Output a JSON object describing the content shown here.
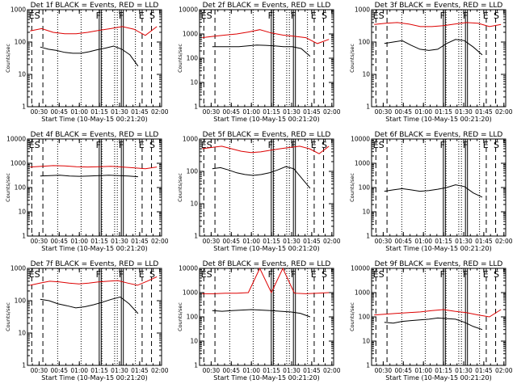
{
  "figure": {
    "colors": {
      "events": "#000000",
      "lld": "#dd0000",
      "axes": "#000000",
      "background": "#ffffff"
    }
  },
  "chart_data": [
    {
      "type": "line",
      "title": "Det 1f BLACK = Events, RED = LLD",
      "xlabel": "Start Time (10-May-15 00:21:20)",
      "ylabel": "Counts/sec",
      "x_ticks": [
        "00:30",
        "00:45",
        "01:00",
        "01:15",
        "01:30",
        "01:45",
        "02:00"
      ],
      "y_ticks": [
        "1",
        "10",
        "100",
        "1000"
      ],
      "ylim": [
        1,
        1000
      ],
      "y_scale": "log",
      "markers": [
        "E",
        "S",
        "F",
        "F",
        "E",
        "S"
      ],
      "series": [
        {
          "name": "Events",
          "color": "#000000",
          "values": [
            70,
            60,
            55,
            48,
            45,
            45,
            50,
            58,
            65,
            75,
            60,
            40,
            18
          ]
        },
        {
          "name": "LLD",
          "color": "#dd0000",
          "values": [
            220,
            260,
            200,
            180,
            180,
            200,
            230,
            260,
            300,
            250,
            160,
            300
          ]
        }
      ]
    },
    {
      "type": "line",
      "title": "Det 2f BLACK = Events, RED = LLD",
      "xlabel": "Start Time (10-May-15 00:21:20)",
      "ylabel": "Counts/sec",
      "x_ticks": [
        "00:30",
        "00:45",
        "01:00",
        "01:15",
        "01:30",
        "01:45",
        "02:00"
      ],
      "y_ticks": [
        "1",
        "10",
        "100",
        "1000",
        "10000"
      ],
      "ylim": [
        1,
        10000
      ],
      "y_scale": "log",
      "markers": [
        "E",
        "S",
        "F",
        "F",
        "E",
        "S"
      ],
      "series": [
        {
          "name": "Events",
          "color": "#000000",
          "values": [
            300,
            300,
            300,
            300,
            320,
            350,
            340,
            320,
            300,
            300,
            250,
            120
          ]
        },
        {
          "name": "LLD",
          "color": "#dd0000",
          "values": [
            700,
            800,
            900,
            1000,
            1200,
            1500,
            1100,
            900,
            800,
            700,
            400,
            600
          ]
        }
      ]
    },
    {
      "type": "line",
      "title": "Det 3f BLACK = Events, RED = LLD",
      "xlabel": "Start Time (10-May-15 00:21:20)",
      "ylabel": "Counts/sec",
      "x_ticks": [
        "00:30",
        "00:45",
        "01:00",
        "01:15",
        "01:30",
        "01:45",
        "02:00"
      ],
      "y_ticks": [
        "1",
        "10",
        "100",
        "1000"
      ],
      "ylim": [
        1,
        1000
      ],
      "y_scale": "log",
      "markers": [
        "E",
        "S",
        "F",
        "F",
        "E",
        "S"
      ],
      "series": [
        {
          "name": "Events",
          "color": "#000000",
          "values": [
            90,
            100,
            110,
            80,
            60,
            55,
            60,
            90,
            120,
            110,
            70,
            40
          ]
        },
        {
          "name": "LLD",
          "color": "#dd0000",
          "values": [
            350,
            380,
            400,
            360,
            300,
            300,
            320,
            360,
            400,
            380,
            300,
            350
          ]
        }
      ]
    },
    {
      "type": "line",
      "title": "Det 4f BLACK = Events, RED = LLD",
      "xlabel": "Start Time (10-May-15 00:21:20)",
      "ylabel": "Counts/sec",
      "x_ticks": [
        "00:30",
        "00:45",
        "01:00",
        "01:15",
        "01:30",
        "01:45",
        "02:00"
      ],
      "y_ticks": [
        "1",
        "10",
        "100",
        "1000",
        "10000"
      ],
      "ylim": [
        1,
        10000
      ],
      "y_scale": "log",
      "markers": [
        "E",
        "S",
        "F",
        "F",
        "E",
        "S"
      ],
      "series": [
        {
          "name": "Events",
          "color": "#000000",
          "values": [
            300,
            310,
            320,
            300,
            290,
            300,
            310,
            320,
            310,
            300,
            280
          ]
        },
        {
          "name": "LLD",
          "color": "#dd0000",
          "values": [
            700,
            750,
            800,
            780,
            720,
            700,
            720,
            750,
            700,
            650,
            600,
            700
          ]
        }
      ]
    },
    {
      "type": "line",
      "title": "Det 5f BLACK = Events, RED = LLD",
      "xlabel": "Start Time (10-May-15 00:21:20)",
      "ylabel": "Counts/sec",
      "x_ticks": [
        "00:30",
        "00:45",
        "01:00",
        "01:15",
        "01:30",
        "01:45",
        "02:00"
      ],
      "y_ticks": [
        "1",
        "10",
        "100",
        "1000"
      ],
      "ylim": [
        1,
        1000
      ],
      "y_scale": "log",
      "markers": [
        "E",
        "S",
        "F",
        "F",
        "E",
        "S"
      ],
      "series": [
        {
          "name": "Events",
          "color": "#000000",
          "values": [
            120,
            130,
            110,
            90,
            80,
            75,
            80,
            90,
            110,
            140,
            120,
            60,
            30
          ]
        },
        {
          "name": "LLD",
          "color": "#dd0000",
          "values": [
            500,
            550,
            600,
            500,
            420,
            380,
            400,
            450,
            500,
            550,
            600,
            500,
            350,
            600
          ]
        }
      ]
    },
    {
      "type": "line",
      "title": "Det 6f BLACK = Events, RED = LLD",
      "xlabel": "Start Time (10-May-15 00:21:20)",
      "ylabel": "Counts/sec",
      "x_ticks": [
        "00:30",
        "00:45",
        "01:00",
        "01:15",
        "01:30",
        "01:45",
        "02:00"
      ],
      "y_ticks": [
        "1",
        "10",
        "100",
        "1000",
        "10000"
      ],
      "ylim": [
        1,
        10000
      ],
      "y_scale": "log",
      "markers": [
        "E",
        "S",
        "F",
        "F",
        "E",
        "S"
      ],
      "series": [
        {
          "name": "Events",
          "color": "#000000",
          "values": [
            70,
            80,
            90,
            80,
            70,
            75,
            85,
            100,
            130,
            110,
            60,
            40
          ]
        }
      ]
    },
    {
      "type": "line",
      "title": "Det 7f BLACK = Events, RED = LLD",
      "xlabel": "Start Time (10-May-15 00:21:20)",
      "ylabel": "Counts/sec",
      "x_ticks": [
        "00:30",
        "00:45",
        "01:00",
        "01:15",
        "01:30",
        "01:45",
        "02:00"
      ],
      "y_ticks": [
        "1",
        "10",
        "100",
        "1000"
      ],
      "ylim": [
        1,
        1000
      ],
      "y_scale": "log",
      "markers": [
        "E",
        "S",
        "F",
        "F",
        "E",
        "S"
      ],
      "series": [
        {
          "name": "Events",
          "color": "#000000",
          "values": [
            110,
            100,
            80,
            70,
            60,
            65,
            75,
            90,
            110,
            130,
            80,
            40
          ]
        },
        {
          "name": "LLD",
          "color": "#dd0000",
          "values": [
            300,
            350,
            400,
            380,
            350,
            330,
            350,
            380,
            400,
            420,
            350,
            300,
            400,
            550
          ]
        }
      ]
    },
    {
      "type": "line",
      "title": "Det 8f BLACK = Events, RED = LLD",
      "xlabel": "Start Time (10-May-15 00:21:20)",
      "ylabel": "Counts/sec",
      "x_ticks": [
        "00:30",
        "00:45",
        "01:00",
        "01:15",
        "01:30",
        "01:45",
        "02:00"
      ],
      "y_ticks": [
        "1",
        "10",
        "100",
        "1000",
        "10000"
      ],
      "ylim": [
        1,
        10000
      ],
      "y_scale": "log",
      "markers": [
        "E",
        "S",
        "F",
        "F",
        "E",
        "S"
      ],
      "series": [
        {
          "name": "Events",
          "color": "#000000",
          "values": [
            180,
            170,
            180,
            190,
            200,
            190,
            180,
            170,
            160,
            140,
            100
          ]
        },
        {
          "name": "LLD",
          "color": "#dd0000",
          "values": [
            900,
            900,
            950,
            950,
            1000,
            10000,
            1000,
            10000,
            950,
            900,
            950,
            1000
          ]
        }
      ]
    },
    {
      "type": "line",
      "title": "Det 9f BLACK = Events, RED = LLD",
      "xlabel": "Start Time (10-May-15 00:21:20)",
      "ylabel": "Counts/sec",
      "x_ticks": [
        "00:30",
        "00:45",
        "01:00",
        "01:15",
        "01:30",
        "01:45",
        "02:00"
      ],
      "y_ticks": [
        "1",
        "10",
        "100",
        "1000",
        "10000"
      ],
      "ylim": [
        1,
        10000
      ],
      "y_scale": "log",
      "markers": [
        "E",
        "S",
        "F",
        "F",
        "E",
        "S"
      ],
      "series": [
        {
          "name": "Events",
          "color": "#000000",
          "values": [
            60,
            55,
            65,
            70,
            75,
            80,
            90,
            85,
            80,
            60,
            40,
            30
          ]
        },
        {
          "name": "LLD",
          "color": "#dd0000",
          "values": [
            120,
            130,
            140,
            150,
            160,
            180,
            200,
            170,
            150,
            120,
            100,
            200
          ]
        }
      ]
    }
  ]
}
